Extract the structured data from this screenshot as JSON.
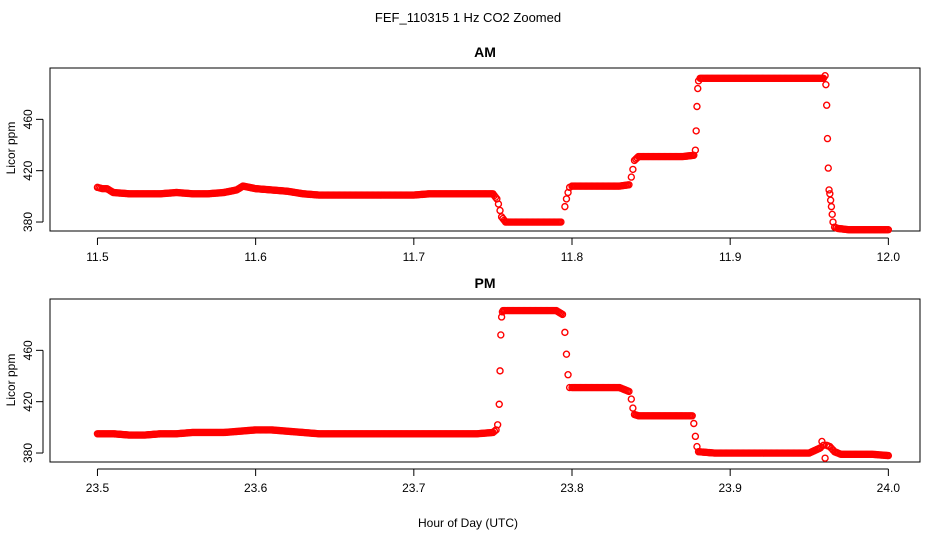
{
  "figure": {
    "title": "FEF_110315  1 Hz CO2 Zoomed",
    "xlabel": "Hour of Day (UTC)",
    "point_color": "#ff0000"
  },
  "chart_data": [
    {
      "type": "scatter",
      "title": "AM",
      "xlabel": "",
      "ylabel": "Licor ppm",
      "xlim": [
        11.47,
        12.02
      ],
      "ylim": [
        373,
        500
      ],
      "xticks": [
        11.5,
        11.6,
        11.7,
        11.8,
        11.9,
        12.0
      ],
      "xtick_labels": [
        "11.5",
        "11.6",
        "11.7",
        "11.8",
        "11.9",
        "12.0"
      ],
      "yticks": [
        380,
        420,
        460
      ],
      "ytick_labels": [
        "380",
        "420",
        "460"
      ],
      "series": [
        {
          "x": [
            11.5,
            11.503,
            11.506,
            11.51,
            11.52,
            11.53,
            11.54,
            11.55,
            11.56,
            11.57,
            11.58,
            11.588,
            11.592,
            11.6,
            11.61,
            11.62,
            11.63,
            11.64,
            11.65,
            11.66,
            11.67,
            11.68,
            11.69,
            11.7,
            11.71,
            11.72,
            11.73,
            11.74,
            11.75,
            11.7525,
            11.7535,
            11.7545,
            11.7555,
            11.758,
            11.765,
            11.775,
            11.785,
            11.793,
            11.7955,
            11.7965,
            11.7975,
            11.7985,
            11.8,
            11.81,
            11.82,
            11.83,
            11.836,
            11.8375,
            11.8385,
            11.8395,
            11.842,
            11.85,
            11.86,
            11.87,
            11.877,
            11.878,
            11.8785,
            11.879,
            11.8795,
            11.88,
            11.881,
            11.885,
            11.895,
            11.905,
            11.915,
            11.925,
            11.935,
            11.945,
            11.955,
            11.959,
            11.96,
            11.9605,
            11.961,
            11.9615,
            11.962,
            11.9625,
            11.963,
            11.9635,
            11.964,
            11.9645,
            11.965,
            11.966,
            11.968,
            11.975,
            11.985,
            11.995,
            12.0
          ],
          "y": [
            407,
            406,
            406,
            403,
            402,
            402,
            402,
            403,
            402,
            402,
            403,
            405,
            408,
            406,
            405,
            404,
            402,
            401,
            401,
            401,
            401,
            401,
            401,
            401,
            402,
            402,
            402,
            402,
            402,
            398,
            394,
            389,
            384,
            380,
            380,
            380,
            380,
            380,
            392,
            398,
            403,
            407,
            408,
            408,
            408,
            408,
            409,
            415,
            421,
            428,
            431,
            431,
            431,
            431,
            432,
            436,
            451,
            470,
            484,
            490,
            492,
            492,
            492,
            492,
            492,
            492,
            492,
            492,
            492,
            492,
            494,
            487,
            471,
            445,
            422,
            405,
            402,
            397,
            392,
            386,
            380,
            376,
            375,
            374,
            374,
            374,
            374
          ]
        }
      ]
    },
    {
      "type": "scatter",
      "title": "PM",
      "xlabel": "",
      "ylabel": "Licor ppm",
      "xlim": [
        23.47,
        24.02
      ],
      "ylim": [
        373,
        500
      ],
      "xticks": [
        23.5,
        23.6,
        23.7,
        23.8,
        23.9,
        24.0
      ],
      "xtick_labels": [
        "23.5",
        "23.6",
        "23.7",
        "23.8",
        "23.9",
        "24.0"
      ],
      "yticks": [
        380,
        420,
        460
      ],
      "ytick_labels": [
        "380",
        "420",
        "460"
      ],
      "series": [
        {
          "x": [
            23.5,
            23.51,
            23.52,
            23.53,
            23.54,
            23.55,
            23.56,
            23.57,
            23.58,
            23.59,
            23.6,
            23.61,
            23.62,
            23.63,
            23.64,
            23.65,
            23.66,
            23.67,
            23.68,
            23.69,
            23.7,
            23.71,
            23.72,
            23.73,
            23.74,
            23.75,
            23.752,
            23.753,
            23.754,
            23.7545,
            23.755,
            23.7555,
            23.756,
            23.7565,
            23.76,
            23.77,
            23.78,
            23.79,
            23.794,
            23.7955,
            23.7965,
            23.7975,
            23.7985,
            23.8,
            23.81,
            23.82,
            23.83,
            23.836,
            23.8375,
            23.8385,
            23.8395,
            23.842,
            23.85,
            23.86,
            23.87,
            23.876,
            23.877,
            23.878,
            23.879,
            23.88,
            23.89,
            23.9,
            23.91,
            23.92,
            23.93,
            23.94,
            23.95,
            23.957,
            23.958,
            23.959,
            23.96,
            23.961,
            23.963,
            23.966,
            23.97,
            23.98,
            23.99,
            24.0
          ],
          "y": [
            395,
            395,
            394,
            394,
            395,
            395,
            396,
            396,
            396,
            397,
            398,
            398,
            397,
            396,
            395,
            395,
            395,
            395,
            395,
            395,
            395,
            395,
            395,
            395,
            395,
            396,
            398,
            402,
            418,
            444,
            472,
            486,
            490,
            491,
            491,
            491,
            491,
            491,
            488,
            474,
            457,
            441,
            431,
            431,
            431,
            431,
            431,
            428,
            422,
            415,
            410,
            409,
            409,
            409,
            409,
            409,
            403,
            393,
            385,
            381,
            380,
            380,
            380,
            380,
            380,
            380,
            380,
            384,
            389,
            386,
            376,
            386,
            385,
            381,
            379,
            379,
            379,
            378
          ]
        }
      ]
    }
  ]
}
